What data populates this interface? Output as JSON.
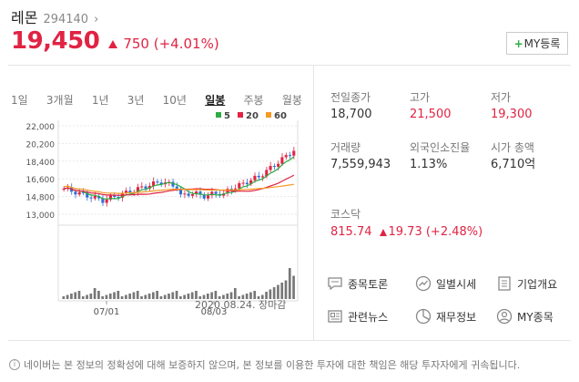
{
  "stock": {
    "name": "레몬",
    "code": "294140",
    "chevron": "›",
    "price": "19,450",
    "change": "750",
    "change_pct": "(+4.01%)"
  },
  "my_button": {
    "plus": "+",
    "label": "MY등록"
  },
  "tabs": [
    "1일",
    "3개월",
    "1년",
    "3년",
    "10년",
    "일봉",
    "주봉",
    "월봉"
  ],
  "active_tab": "일봉",
  "legend": [
    {
      "label": "5",
      "color": "#2dab44"
    },
    {
      "label": "20",
      "color": "#e12343"
    },
    {
      "label": "60",
      "color": "#f59a23"
    }
  ],
  "chart_data": {
    "type": "candlestick",
    "y_ticks": [
      "22,000",
      "20,200",
      "18,400",
      "16,600",
      "14,800",
      "13,000"
    ],
    "ylim": [
      13000,
      22000
    ],
    "x_labels": [
      "07/01",
      "08/03"
    ]
  },
  "date_note": "2020.08.24. 장마감",
  "stats": {
    "prev_close": {
      "label": "전일종가",
      "value": "18,700"
    },
    "high": {
      "label": "고가",
      "value": "21,500"
    },
    "low": {
      "label": "저가",
      "value": "19,300"
    },
    "volume": {
      "label": "거래량",
      "value": "7,559,943"
    },
    "foreign": {
      "label": "외국인소진율",
      "value": "1.13%"
    },
    "market_cap": {
      "label": "시가 총액",
      "value": "6,710억"
    }
  },
  "kosdaq": {
    "label": "코스닥",
    "value": "815.74",
    "change": "19.73",
    "change_pct": "(+2.48%)"
  },
  "links": {
    "discussion": "종목토론",
    "daily": "일별시세",
    "company": "기업개요",
    "news": "관련뉴스",
    "finance": "재무정보",
    "my": "MY종목"
  },
  "footer": "네이버는 본 정보의 정확성에 대해 보증하지 않으며, 본 정보를 이용한 투자에 대한 책임은 해당 투자자에게 귀속됩니다."
}
